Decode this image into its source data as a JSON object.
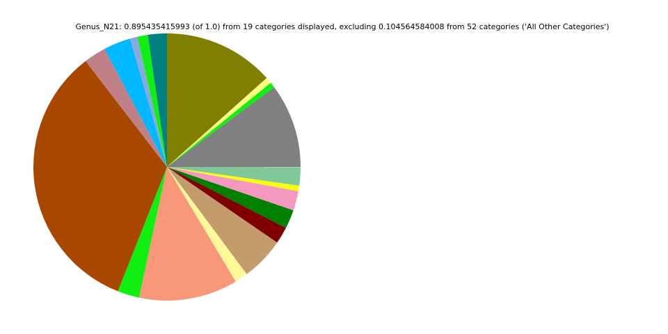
{
  "chart_data": {
    "type": "pie",
    "title": "Genus_N21: 0.895435415993 (of 1.0) from 19 categories displayed, excluding 0.104564584008 from 52 categories ('All Other Categories')",
    "values": [
      0.12,
      0.0067,
      0.006,
      0.0913,
      0.0199,
      0.006,
      0.0211,
      0.0204,
      0.0182,
      0.047,
      0.0142,
      0.107,
      0.0236,
      0.3007,
      0.0241,
      0.0293,
      0.0082,
      0.0112,
      0.0206
    ],
    "colors": [
      "#808000",
      "#ffff80",
      "#10f010",
      "#808080",
      "#80c898",
      "#ffff10",
      "#f498c0",
      "#008000",
      "#800000",
      "#c49c6c",
      "#fff898",
      "#f89878",
      "#10f010",
      "#a84800",
      "#c08088",
      "#00b8ff",
      "#88a8e0",
      "#10f010",
      "#008080"
    ],
    "start_angle": 90,
    "direction": "clockwise"
  }
}
